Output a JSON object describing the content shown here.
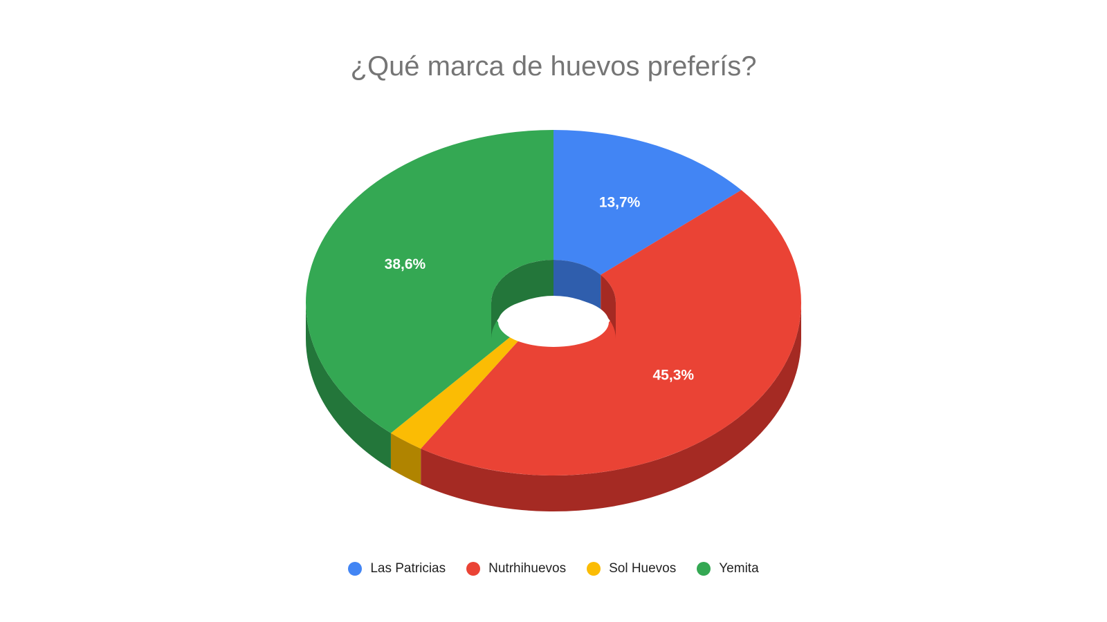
{
  "chart_data": {
    "type": "pie",
    "title": "¿Qué marca de huevos preferís?",
    "style": "3d-donut",
    "legend_position": "bottom",
    "slices": [
      {
        "name": "Las Patricias",
        "value": 13.7,
        "label": "13,7%",
        "color": "#4285F4",
        "side_color": "#2F5EAD"
      },
      {
        "name": "Nutrhihuevos",
        "value": 45.3,
        "label": "45,3%",
        "color": "#EA4335",
        "side_color": "#A52A23"
      },
      {
        "name": "Sol Huevos",
        "value": 2.4,
        "label": "",
        "color": "#FBBC04",
        "side_color": "#B08400"
      },
      {
        "name": "Yemita",
        "value": 38.6,
        "label": "38,6%",
        "color": "#34A853",
        "side_color": "#23763A"
      }
    ]
  }
}
